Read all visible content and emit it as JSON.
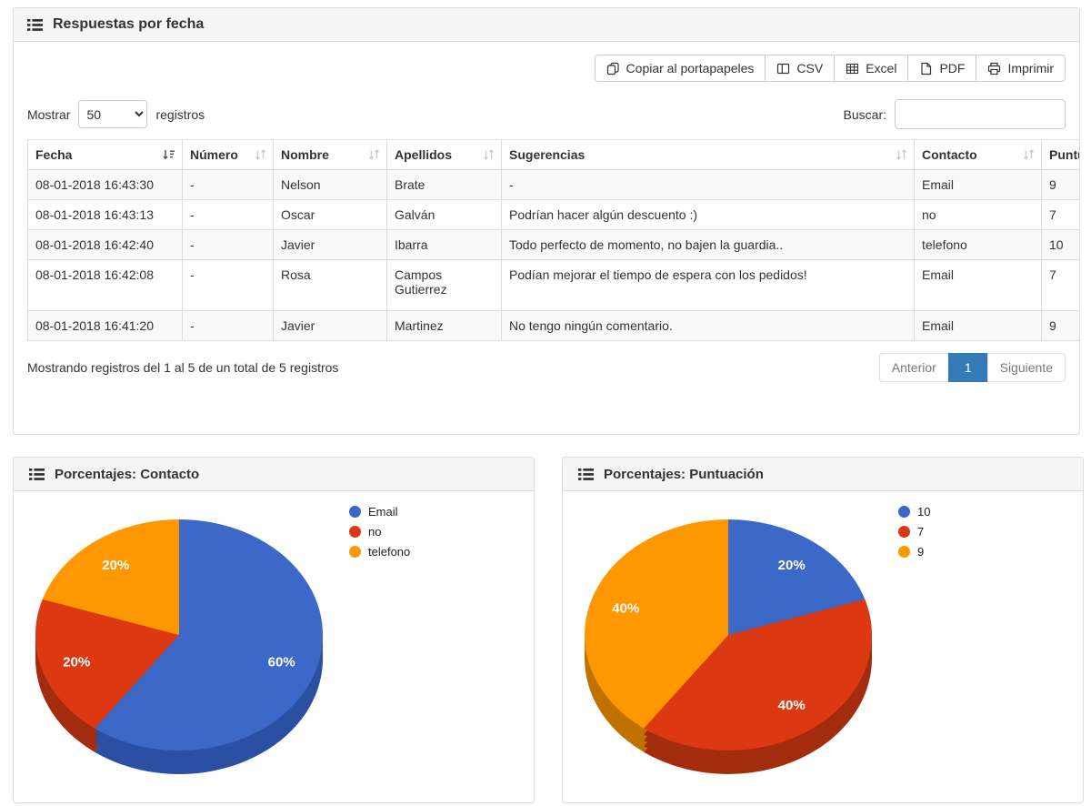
{
  "panel_table": {
    "title": "Respuestas por fecha",
    "toolbar": {
      "copy": "Copiar al portapapeles",
      "csv": "CSV",
      "excel": "Excel",
      "pdf": "PDF",
      "print": "Imprimir"
    },
    "length": {
      "before": "Mostrar",
      "value": "50",
      "after": "registros"
    },
    "search": {
      "label": "Buscar:",
      "value": ""
    },
    "columns": [
      "Fecha",
      "Número",
      "Nombre",
      "Apellidos",
      "Sugerencias",
      "Contacto",
      "Puntuación"
    ],
    "rows": [
      [
        "08-01-2018 16:43:30",
        "-",
        "Nelson",
        "Brate",
        "-",
        "Email",
        "9"
      ],
      [
        "08-01-2018 16:43:13",
        "-",
        "Oscar",
        "Galván",
        "Podrían hacer algún descuento :)",
        "no",
        "7"
      ],
      [
        "08-01-2018 16:42:40",
        "-",
        "Javier",
        "Ibarra",
        "Todo perfecto de momento, no bajen la guardia..",
        "telefono",
        "10"
      ],
      [
        "08-01-2018 16:42:08",
        "-",
        "Rosa",
        "Campos Gutierrez",
        "Podían mejorar el tiempo de espera con los pedidos!",
        "Email",
        "7"
      ],
      [
        "08-01-2018 16:41:20",
        "-",
        "Javier",
        "Martinez",
        "No tengo ningún comentario.",
        "Email",
        "9"
      ]
    ],
    "info": "Mostrando registros del 1 al 5 de un total de 5 registros",
    "pagination": {
      "previous": "Anterior",
      "current": "1",
      "next": "Siguiente"
    }
  },
  "chart_data": [
    {
      "type": "pie",
      "title": "Porcentajes: Contacto",
      "labels": [
        "Email",
        "no",
        "telefono"
      ],
      "values": [
        60,
        20,
        20
      ],
      "unit": "%",
      "data_labels": [
        "60%",
        "20%",
        "20%"
      ],
      "colors": [
        "#3c69c7",
        "#dc3912",
        "#ff9800"
      ],
      "colors_dark": [
        "#2b4fa3",
        "#a22c0d",
        "#c07200"
      ],
      "effect": "3d",
      "start_angle_deg": 0,
      "direction": "clockwise",
      "legend_position": "top-right"
    },
    {
      "type": "pie",
      "title": "Porcentajes: Puntuación",
      "labels": [
        "10",
        "7",
        "9"
      ],
      "values": [
        20,
        40,
        40
      ],
      "unit": "%",
      "data_labels": [
        "20%",
        "40%",
        "40%"
      ],
      "colors": [
        "#3c69c7",
        "#dc3912",
        "#ff9800"
      ],
      "colors_dark": [
        "#2b4fa3",
        "#a22c0d",
        "#c07200"
      ],
      "effect": "3d",
      "start_angle_deg": 0,
      "direction": "clockwise",
      "legend_position": "top-right"
    }
  ]
}
